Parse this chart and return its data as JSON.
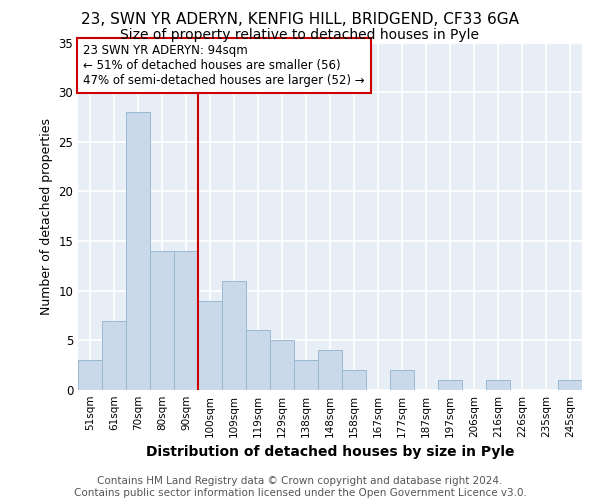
{
  "title1": "23, SWN YR ADERYN, KENFIG HILL, BRIDGEND, CF33 6GA",
  "title2": "Size of property relative to detached houses in Pyle",
  "xlabel": "Distribution of detached houses by size in Pyle",
  "ylabel": "Number of detached properties",
  "bin_labels": [
    "51sqm",
    "61sqm",
    "70sqm",
    "80sqm",
    "90sqm",
    "100sqm",
    "109sqm",
    "119sqm",
    "129sqm",
    "138sqm",
    "148sqm",
    "158sqm",
    "167sqm",
    "177sqm",
    "187sqm",
    "197sqm",
    "206sqm",
    "216sqm",
    "226sqm",
    "235sqm",
    "245sqm"
  ],
  "bar_heights": [
    3,
    7,
    28,
    14,
    14,
    9,
    11,
    6,
    5,
    3,
    4,
    2,
    0,
    2,
    0,
    1,
    0,
    1,
    0,
    0,
    1
  ],
  "bar_color": "#c9d9ea",
  "bar_edge_color": "#9ab8d0",
  "vline_x": 4.5,
  "vline_color": "#cc0000",
  "annotation_text": "23 SWN YR ADERYN: 94sqm\n← 51% of detached houses are smaller (56)\n47% of semi-detached houses are larger (52) →",
  "annotation_box_color": "white",
  "annotation_box_edge": "#cc0000",
  "footnote": "Contains HM Land Registry data © Crown copyright and database right 2024.\nContains public sector information licensed under the Open Government Licence v3.0.",
  "ylim": [
    0,
    35
  ],
  "yticks": [
    0,
    5,
    10,
    15,
    20,
    25,
    30,
    35
  ],
  "background_color": "#ffffff",
  "plot_bg_color": "#e8eef5",
  "grid_color": "#ffffff",
  "title1_fontsize": 11,
  "title2_fontsize": 10,
  "xlabel_fontsize": 10,
  "ylabel_fontsize": 9,
  "footnote_fontsize": 7.5,
  "annotation_fontsize": 8.5
}
